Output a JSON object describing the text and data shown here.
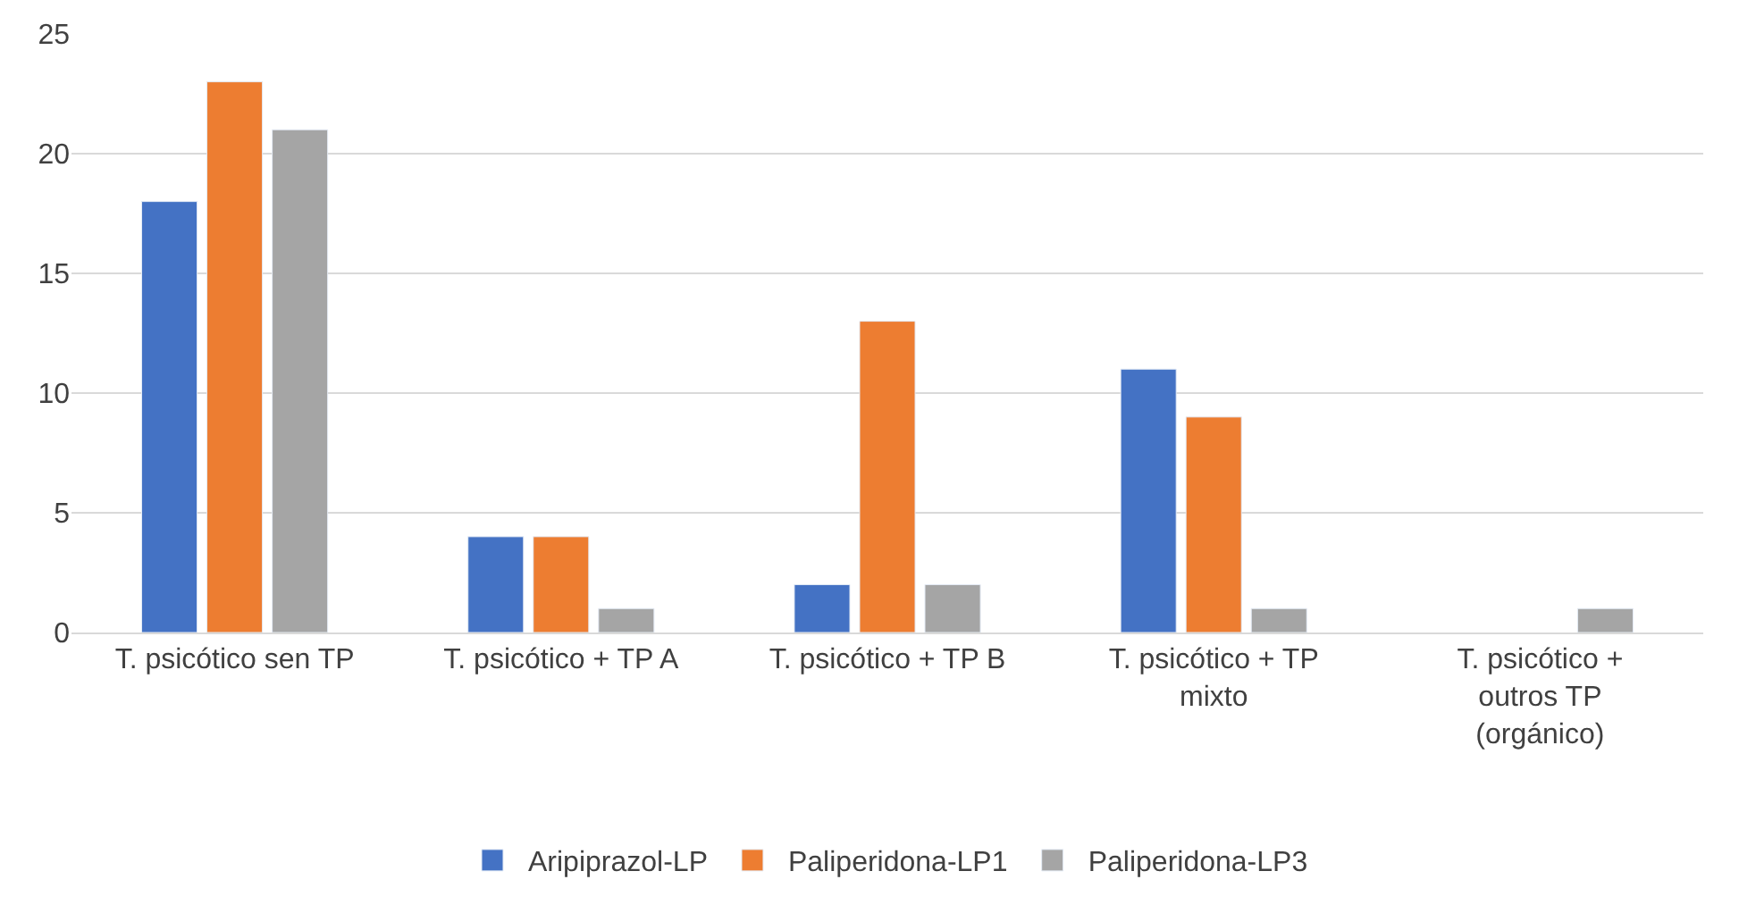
{
  "chart_data": {
    "type": "bar",
    "categories": [
      "T. psicótico sen TP",
      "T. psicótico + TP A",
      "T. psicótico + TP B",
      "T. psicótico + TP mixto",
      "T. psicótico + outros TP (orgánico)"
    ],
    "series": [
      {
        "name": "Aripiprazol-LP",
        "color": "#4472c4",
        "values": [
          18,
          4,
          2,
          11,
          null
        ]
      },
      {
        "name": "Paliperidona-LP1",
        "color": "#ed7d31",
        "values": [
          23,
          4,
          13,
          9,
          null
        ]
      },
      {
        "name": "Paliperidona-LP3",
        "color": "#a5a5a5",
        "values": [
          21,
          1,
          2,
          1,
          1
        ]
      }
    ],
    "ylim": [
      0,
      25
    ],
    "yticks": [
      0,
      5,
      10,
      15,
      20,
      25
    ],
    "grid": "y",
    "legend": "bottom"
  }
}
